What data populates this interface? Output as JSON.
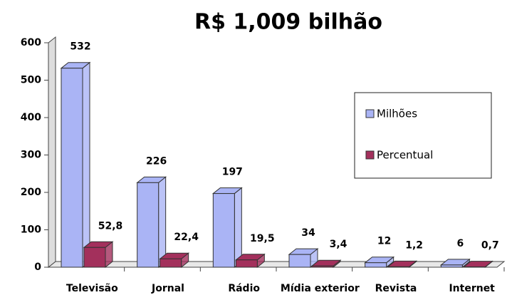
{
  "chart_data": {
    "type": "bar3d",
    "title": "R$ 1,009 bilhão",
    "categories": [
      "Televisão",
      "Jornal",
      "Rádio",
      "Mídia exterior",
      "Revista",
      "Internet"
    ],
    "series": [
      {
        "name": "Milhões",
        "color": "#aab4f5",
        "values": [
          532,
          226,
          197,
          34,
          12,
          6
        ]
      },
      {
        "name": "Percentual",
        "color": "#a3305c",
        "values": [
          52.8,
          22.4,
          19.5,
          3.4,
          1.2,
          0.7
        ],
        "value_labels": [
          "52,8",
          "22,4",
          "19,5",
          "3,4",
          "1,2",
          "0,7"
        ]
      }
    ],
    "ylim": [
      0,
      600
    ],
    "yticks": [
      0,
      100,
      200,
      300,
      400,
      500,
      600
    ],
    "legend": "right"
  }
}
